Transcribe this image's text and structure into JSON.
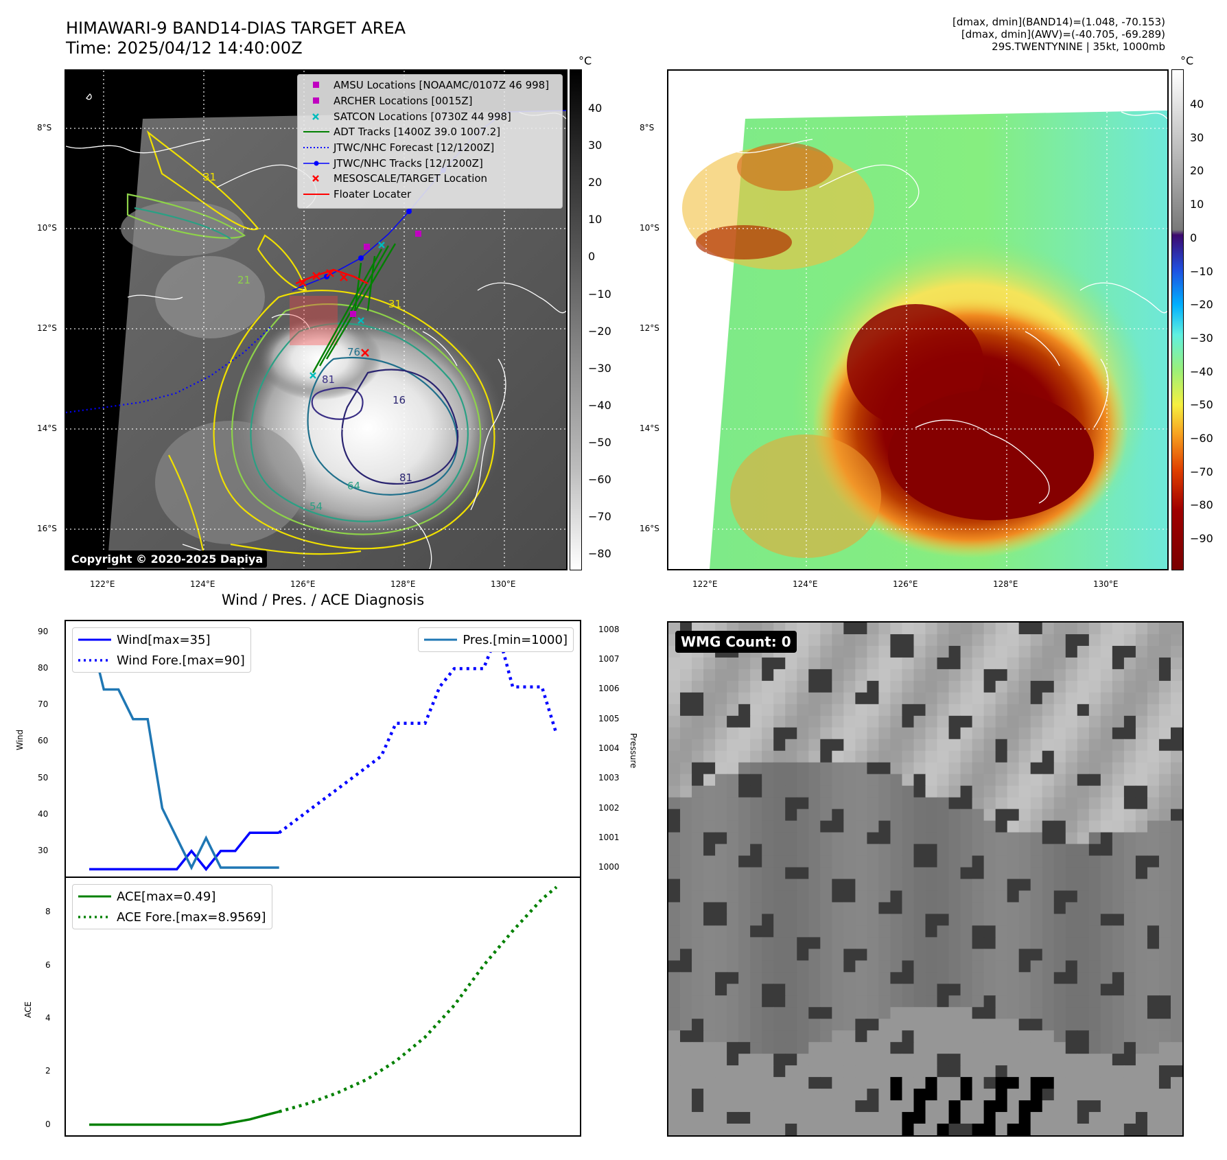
{
  "header": {
    "title_line1": "HIMAWARI-9 BAND14-DIAS TARGET AREA",
    "title_line2": "Time: 2025/04/12 14:40:00Z",
    "stats_line1": "[dmax, dmin](BAND14)=(1.048, -70.153)",
    "stats_line2": "[dmax, dmin](AWV)=(-40.705, -69.289)",
    "stats_line3": "29S.TWENTYNINE | 35kt, 1000mb"
  },
  "map_left": {
    "lat_labels": [
      "8°S",
      "10°S",
      "12°S",
      "14°S",
      "16°S"
    ],
    "lon_labels": [
      "122°E",
      "124°E",
      "126°E",
      "128°E",
      "130°E"
    ],
    "copyright": "Copyright © 2020-2025 Dapiya",
    "contour_labels": [
      "81",
      "76",
      "16",
      "81",
      "64",
      "54",
      "31",
      "21",
      "31"
    ],
    "legend": [
      {
        "label": "AMSU Locations [NOAAMC/0107Z 46 998]",
        "symbol": "square",
        "color": "#c000c0"
      },
      {
        "label": "ARCHER Locations [0015Z]",
        "symbol": "square",
        "color": "#c000c0"
      },
      {
        "label": "SATCON Locations [0730Z 44 998]",
        "symbol": "x",
        "color": "#00bcbc"
      },
      {
        "label": "ADT Tracks [1400Z 39.0 1007.2]",
        "symbol": "line",
        "color": "#008000"
      },
      {
        "label": "JTWC/NHC Forecast [12/1200Z]",
        "symbol": "dotted",
        "color": "#0000ff"
      },
      {
        "label": "JTWC/NHC Tracks [12/1200Z]",
        "symbol": "line-dot",
        "color": "#0000ff"
      },
      {
        "label": "MESOSCALE/TARGET Location",
        "symbol": "x",
        "color": "#ff0000"
      },
      {
        "label": "Floater Locater",
        "symbol": "line",
        "color": "#ff0000"
      }
    ]
  },
  "colorbar_left": {
    "unit": "°C",
    "ticks": [
      "40",
      "30",
      "20",
      "10",
      "0",
      "−10",
      "−20",
      "−30",
      "−40",
      "−50",
      "−60",
      "−70",
      "−80"
    ]
  },
  "map_right": {
    "lat_labels": [
      "8°S",
      "10°S",
      "12°S",
      "14°S",
      "16°S"
    ],
    "lon_labels": [
      "122°E",
      "124°E",
      "126°E",
      "128°E",
      "130°E"
    ]
  },
  "colorbar_right": {
    "unit": "°C",
    "ticks": [
      "40",
      "30",
      "20",
      "10",
      "0",
      "−10",
      "−20",
      "−30",
      "−40",
      "−50",
      "−60",
      "−70",
      "−80",
      "−90"
    ]
  },
  "wmg": {
    "label": "WMG Count: 0"
  },
  "chart_data": [
    {
      "type": "line",
      "title": "Wind / Pres. / ACE Diagnosis",
      "ylabel": "Wind",
      "y2label": "Pressure",
      "ylim": [
        23,
        93
      ],
      "y2lim": [
        999.7,
        1008.3
      ],
      "yticks": [
        "90",
        "80",
        "70",
        "60",
        "50",
        "40",
        "30"
      ],
      "y2ticks": [
        "1008",
        "1007",
        "1006",
        "1005",
        "1004",
        "1003",
        "1002",
        "1001",
        "1000"
      ],
      "legend_left": [
        "Wind[max=35]",
        "Wind Fore.[max=90]"
      ],
      "legend_right": [
        "Pres.[min=1000]"
      ],
      "series": [
        {
          "name": "Wind[max=35]",
          "axis": "left",
          "style": "solid",
          "color": "#0000ff",
          "x": [
            0,
            1,
            2,
            3,
            4,
            5,
            6,
            7,
            8,
            9,
            10,
            11,
            12,
            13
          ],
          "values": [
            25,
            25,
            25,
            25,
            25,
            25,
            25,
            30,
            25,
            30,
            30,
            35,
            35,
            35
          ]
        },
        {
          "name": "Wind Fore.[max=90]",
          "axis": "left",
          "style": "dotted",
          "color": "#0000ff",
          "x": [
            13,
            14,
            15,
            16,
            17,
            18,
            19,
            20,
            21,
            22,
            23,
            24,
            25,
            26,
            27,
            28,
            29,
            30,
            31,
            32
          ],
          "values": [
            35,
            38,
            41,
            44,
            47,
            50,
            53,
            56,
            65,
            65,
            65,
            75,
            80,
            80,
            80,
            90,
            75,
            75,
            75,
            62
          ]
        },
        {
          "name": "Pres.[min=1000]",
          "axis": "right",
          "style": "solid",
          "color": "#1f77b4",
          "x": [
            0,
            1,
            2,
            3,
            4,
            5,
            6,
            7,
            8,
            9,
            10,
            11,
            12,
            13
          ],
          "values": [
            1008,
            1006,
            1006,
            1005,
            1005,
            1002,
            1001,
            1000,
            1001,
            1000,
            1000,
            1000,
            1000,
            1000
          ]
        }
      ]
    },
    {
      "type": "line",
      "ylabel": "ACE",
      "ylim": [
        -0.4,
        9.3
      ],
      "yticks": [
        "8",
        "6",
        "4",
        "2",
        "0"
      ],
      "legend": [
        "ACE[max=0.49]",
        "ACE Fore.[max=8.9569]"
      ],
      "series": [
        {
          "name": "ACE[max=0.49]",
          "style": "solid",
          "color": "#008000",
          "x": [
            0,
            1,
            2,
            3,
            4,
            5,
            6,
            7,
            8,
            9,
            10,
            11,
            12,
            13
          ],
          "values": [
            0,
            0,
            0,
            0,
            0,
            0,
            0,
            0,
            0,
            0,
            0.1,
            0.2,
            0.35,
            0.49
          ]
        },
        {
          "name": "ACE Fore.[max=8.9569]",
          "style": "dotted",
          "color": "#008000",
          "x": [
            13,
            15,
            17,
            19,
            21,
            23,
            25,
            27,
            29,
            31,
            32
          ],
          "values": [
            0.49,
            0.8,
            1.2,
            1.7,
            2.4,
            3.3,
            4.5,
            6.0,
            7.3,
            8.5,
            8.9569
          ]
        }
      ]
    }
  ]
}
